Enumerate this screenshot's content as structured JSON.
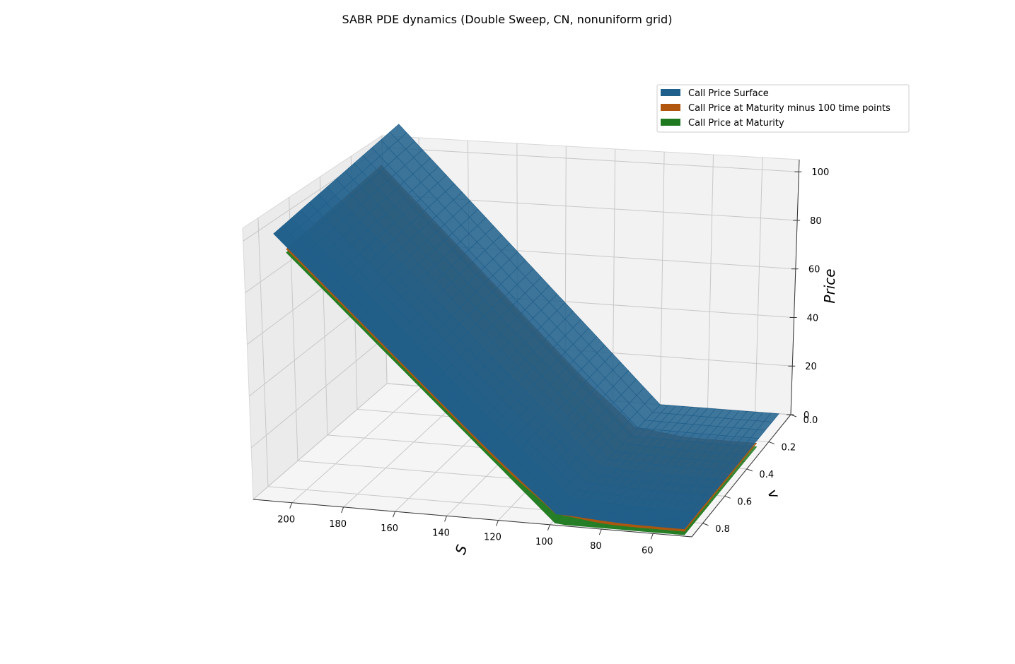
{
  "chart_data": {
    "type": "surface3d",
    "title": "SABR PDE dynamics (Double Sweep, CN, nonuniform grid)",
    "xlabel": "S",
    "ylabel": "v",
    "zlabel": "Price",
    "xlim": [
      45,
      215
    ],
    "ylim": [
      0,
      0.9
    ],
    "zlim": [
      0,
      105
    ],
    "x_ticks": [
      200,
      180,
      160,
      140,
      120,
      100,
      80,
      60
    ],
    "y_ticks": [
      "0.0",
      "0.2",
      "0.4",
      "0.6",
      "0.8"
    ],
    "z_ticks": [
      0,
      20,
      40,
      60,
      80,
      100
    ],
    "strike": 100,
    "grid": true,
    "legend_position": "top-right",
    "series": [
      {
        "name": "Call Price Surface",
        "color": "#1f5f8b",
        "s_range": [
          50,
          210
        ],
        "v_range": [
          0,
          0.85
        ],
        "price_at_S210": 110,
        "price_at_S100": 0
      },
      {
        "name": "Call Price at Maturity minus 100 time points",
        "color": "#b0560e",
        "s_range": [
          50,
          205
        ],
        "v_range": [
          0.2,
          0.85
        ],
        "price_at_S205": 105,
        "price_at_S100": 2
      },
      {
        "name": "Call Price at Maturity",
        "color": "#1f7a1f",
        "s_range": [
          50,
          205
        ],
        "v_range": [
          0.2,
          0.85
        ],
        "price_at_S205": 105,
        "price_at_S100": 0
      }
    ]
  }
}
